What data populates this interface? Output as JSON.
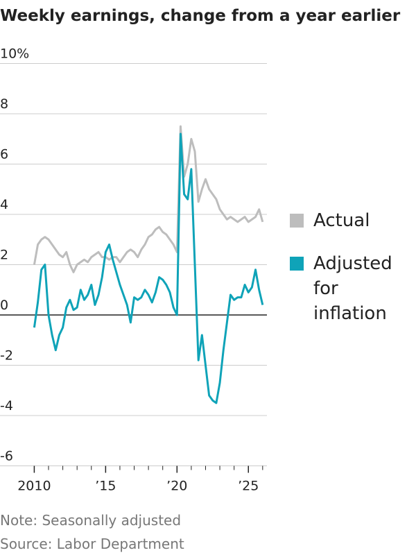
{
  "chart_data": {
    "type": "line",
    "title": "Weekly earnings, change from a year earlier",
    "note": "Note: Seasonally adjusted",
    "source": "Source: Labor Department",
    "x": [
      2010,
      2010.25,
      2010.5,
      2010.75,
      2011,
      2011.25,
      2011.5,
      2011.75,
      2012,
      2012.25,
      2012.5,
      2012.75,
      2013,
      2013.25,
      2013.5,
      2013.75,
      2014,
      2014.25,
      2014.5,
      2014.75,
      2015,
      2015.25,
      2015.5,
      2015.75,
      2016,
      2016.25,
      2016.5,
      2016.75,
      2017,
      2017.25,
      2017.5,
      2017.75,
      2018,
      2018.25,
      2018.5,
      2018.75,
      2019,
      2019.25,
      2019.5,
      2019.75,
      2020,
      2020.25,
      2020.5,
      2020.75,
      2021,
      2021.25,
      2021.5,
      2021.75,
      2022,
      2022.25,
      2022.5,
      2022.75,
      2023,
      2023.25,
      2023.5,
      2023.75,
      2024,
      2024.25,
      2024.5,
      2024.75,
      2025,
      2025.25,
      2025.5,
      2025.75,
      2026
    ],
    "series": [
      {
        "name": "Actual",
        "color": "#bdbdbd",
        "values": [
          2.0,
          2.8,
          3.0,
          3.1,
          3.0,
          2.8,
          2.6,
          2.4,
          2.3,
          2.5,
          2.0,
          1.7,
          2.0,
          2.1,
          2.2,
          2.1,
          2.3,
          2.4,
          2.5,
          2.3,
          2.3,
          2.2,
          2.3,
          2.3,
          2.1,
          2.3,
          2.5,
          2.6,
          2.5,
          2.3,
          2.6,
          2.8,
          3.1,
          3.2,
          3.4,
          3.5,
          3.3,
          3.2,
          3.0,
          2.8,
          2.5,
          7.5,
          5.5,
          6.0,
          7.0,
          6.5,
          4.5,
          5.0,
          5.4,
          5.0,
          4.8,
          4.6,
          4.2,
          4.0,
          3.8,
          3.9,
          3.8,
          3.7,
          3.8,
          3.9,
          3.7,
          3.8,
          3.9,
          4.2,
          3.7
        ]
      },
      {
        "name": "Adjusted for inflation",
        "color": "#0fa3b8",
        "values": [
          -0.5,
          0.5,
          1.8,
          2.0,
          0.0,
          -0.8,
          -1.4,
          -0.8,
          -0.5,
          0.3,
          0.6,
          0.2,
          0.3,
          1.0,
          0.6,
          0.8,
          1.2,
          0.4,
          0.8,
          1.5,
          2.5,
          2.8,
          2.2,
          1.7,
          1.2,
          0.8,
          0.4,
          -0.3,
          0.7,
          0.6,
          0.7,
          1.0,
          0.8,
          0.5,
          0.9,
          1.5,
          1.4,
          1.2,
          0.9,
          0.3,
          0.0,
          7.2,
          4.8,
          4.6,
          5.8,
          2.0,
          -1.8,
          -0.8,
          -2.0,
          -3.2,
          -3.4,
          -3.5,
          -2.7,
          -1.4,
          -0.3,
          0.8,
          0.6,
          0.7,
          0.7,
          1.2,
          0.9,
          1.1,
          1.8,
          1.0,
          0.4
        ]
      }
    ],
    "xlim": [
      2007.6,
      2026.3
    ],
    "xticks": [
      2010,
      {
        "value": 2015,
        "label": "’15"
      },
      {
        "value": 2020,
        "label": "’20"
      },
      {
        "value": 2025,
        "label": "’25"
      }
    ],
    "xminor_ticks": [
      2011,
      2012,
      2013,
      2014,
      2016,
      2017,
      2018,
      2019,
      2021,
      2022,
      2023,
      2024,
      2026
    ],
    "ylim": [
      -6,
      10
    ],
    "yticks": [
      {
        "value": 10,
        "label": "10%"
      },
      8,
      6,
      4,
      2,
      0,
      -2,
      -4,
      -6
    ],
    "grid": true,
    "zero_line": true,
    "legend": "right"
  }
}
